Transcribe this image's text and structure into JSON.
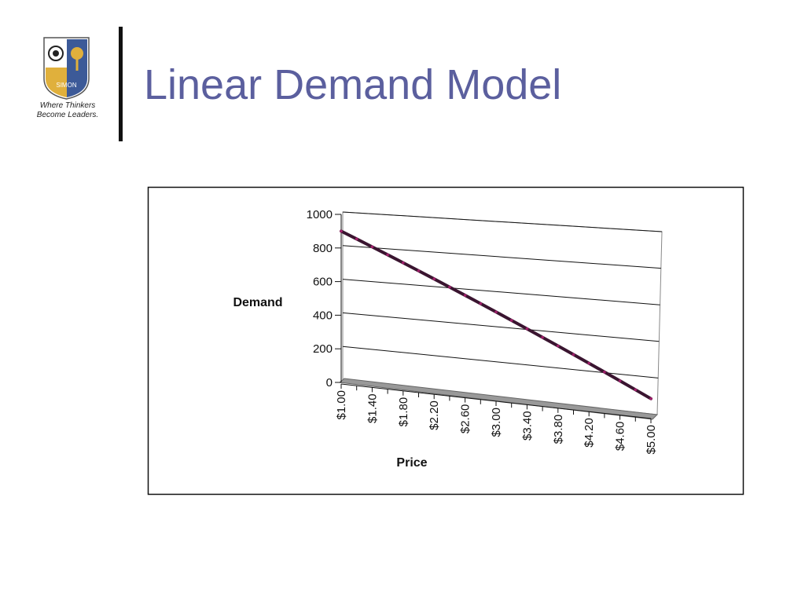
{
  "logo": {
    "emblem": "SIMON",
    "tagline": [
      "Where Thinkers",
      "Become Leaders."
    ]
  },
  "title": "Linear Demand Model",
  "chart_data": {
    "type": "line",
    "x_label": "Price",
    "y_label": "Demand",
    "categories": [
      "$1.00",
      null,
      "$1.40",
      null,
      "$1.80",
      null,
      "$2.20",
      null,
      "$2.60",
      null,
      "$3.00",
      null,
      "$3.40",
      null,
      "$3.80",
      null,
      "$4.20",
      null,
      "$4.60",
      null,
      "$5.00"
    ],
    "values": [
      900,
      860,
      820,
      780,
      740,
      700,
      660,
      620,
      580,
      540,
      500,
      460,
      420,
      380,
      340,
      300,
      260,
      220,
      180,
      140,
      100
    ],
    "color": "#3a1530",
    "marker_color": "#a0206a",
    "ylim": [
      0,
      1000
    ],
    "yticks": [
      0,
      200,
      400,
      600,
      800,
      1000
    ],
    "grid": true
  }
}
